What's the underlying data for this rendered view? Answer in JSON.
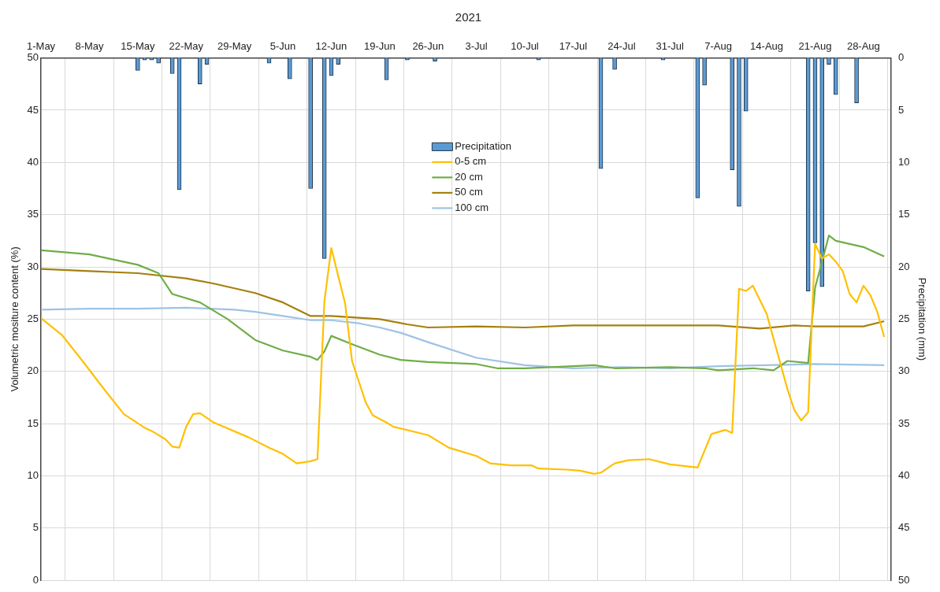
{
  "chart_data": {
    "type": "line",
    "title": "2021",
    "ylabel": "Volumetric mositure content (%)",
    "y2label": "Precipitation (mm)",
    "xlim": [
      "2021-05-01",
      "2021-09-01"
    ],
    "xticks": [
      {
        "value": "2021-05-01",
        "label": "1-May"
      },
      {
        "value": "2021-05-08",
        "label": "8-May"
      },
      {
        "value": "2021-05-15",
        "label": "15-May"
      },
      {
        "value": "2021-05-22",
        "label": "22-May"
      },
      {
        "value": "2021-05-29",
        "label": "29-May"
      },
      {
        "value": "2021-06-05",
        "label": "5-Jun"
      },
      {
        "value": "2021-06-12",
        "label": "12-Jun"
      },
      {
        "value": "2021-06-19",
        "label": "19-Jun"
      },
      {
        "value": "2021-06-26",
        "label": "26-Jun"
      },
      {
        "value": "2021-07-03",
        "label": "3-Jul"
      },
      {
        "value": "2021-07-10",
        "label": "10-Jul"
      },
      {
        "value": "2021-07-17",
        "label": "17-Jul"
      },
      {
        "value": "2021-07-24",
        "label": "24-Jul"
      },
      {
        "value": "2021-07-31",
        "label": "31-Jul"
      },
      {
        "value": "2021-08-07",
        "label": "7-Aug"
      },
      {
        "value": "2021-08-14",
        "label": "14-Aug"
      },
      {
        "value": "2021-08-21",
        "label": "21-Aug"
      },
      {
        "value": "2021-08-28",
        "label": "28-Aug"
      }
    ],
    "ylim": [
      0,
      50
    ],
    "yticks": [
      0,
      5,
      10,
      15,
      20,
      25,
      30,
      35,
      40,
      45,
      50
    ],
    "y2lim": [
      50,
      0
    ],
    "y2ticks": [
      0,
      5,
      10,
      15,
      20,
      25,
      30,
      35,
      40,
      45,
      50
    ],
    "grid": true,
    "legend": "top center",
    "series": [
      {
        "name": "Precipitation",
        "type": "bar",
        "axis": "y2",
        "color": "#5b9bd5",
        "x": [
          "2021-05-15",
          "2021-05-16",
          "2021-05-17",
          "2021-05-18",
          "2021-05-20",
          "2021-05-21",
          "2021-05-24",
          "2021-05-25",
          "2021-06-03",
          "2021-06-06",
          "2021-06-09",
          "2021-06-11",
          "2021-06-12",
          "2021-06-13",
          "2021-06-20",
          "2021-06-23",
          "2021-06-27",
          "2021-07-12",
          "2021-07-21",
          "2021-07-23",
          "2021-07-30",
          "2021-08-04",
          "2021-08-05",
          "2021-08-09",
          "2021-08-10",
          "2021-08-11",
          "2021-08-20",
          "2021-08-21",
          "2021-08-22",
          "2021-08-23",
          "2021-08-24",
          "2021-08-27"
        ],
        "values": [
          1.2,
          0.2,
          0.2,
          0.5,
          1.5,
          12.6,
          2.5,
          0.6,
          0.5,
          2.0,
          12.5,
          19.2,
          1.7,
          0.6,
          2.1,
          0.2,
          0.3,
          0.2,
          10.6,
          1.1,
          0.2,
          13.4,
          2.6,
          10.7,
          14.2,
          5.1,
          22.3,
          17.7,
          21.9,
          0.6,
          3.5,
          4.3
        ]
      },
      {
        "name": "0-5 cm",
        "color": "#ffc000",
        "x": [
          "2021-05-01",
          "2021-05-04",
          "2021-05-07",
          "2021-05-10",
          "2021-05-13",
          "2021-05-16",
          "2021-05-17",
          "2021-05-19",
          "2021-05-20",
          "2021-05-21",
          "2021-05-22",
          "2021-05-23",
          "2021-05-24",
          "2021-05-26",
          "2021-05-31",
          "2021-06-03",
          "2021-06-05",
          "2021-06-07",
          "2021-06-09",
          "2021-06-10",
          "2021-06-11",
          "2021-06-12",
          "2021-06-14",
          "2021-06-15",
          "2021-06-17",
          "2021-06-18",
          "2021-06-20",
          "2021-06-21",
          "2021-06-26",
          "2021-06-29",
          "2021-07-03",
          "2021-07-05",
          "2021-07-08",
          "2021-07-11",
          "2021-07-12",
          "2021-07-16",
          "2021-07-18",
          "2021-07-20",
          "2021-07-21",
          "2021-07-23",
          "2021-07-25",
          "2021-07-28",
          "2021-07-31",
          "2021-08-04",
          "2021-08-06",
          "2021-08-08",
          "2021-08-09",
          "2021-08-10",
          "2021-08-11",
          "2021-08-12",
          "2021-08-14",
          "2021-08-17",
          "2021-08-18",
          "2021-08-19",
          "2021-08-20",
          "2021-08-21",
          "2021-08-22",
          "2021-08-23",
          "2021-08-24",
          "2021-08-25",
          "2021-08-26",
          "2021-08-27",
          "2021-08-28",
          "2021-08-29",
          "2021-08-30",
          "2021-08-31"
        ],
        "values": [
          25.1,
          23.5,
          21.0,
          18.4,
          15.9,
          14.6,
          14.3,
          13.5,
          12.8,
          12.7,
          14.7,
          15.9,
          16.0,
          15.1,
          13.7,
          12.7,
          12.1,
          11.2,
          11.4,
          11.6,
          26.7,
          31.8,
          26.5,
          21.0,
          17.0,
          15.8,
          15.1,
          14.7,
          13.9,
          12.7,
          11.9,
          11.2,
          11.0,
          11.0,
          10.7,
          10.6,
          10.5,
          10.2,
          10.3,
          11.2,
          11.5,
          11.6,
          11.1,
          10.8,
          14.0,
          14.4,
          14.1,
          27.9,
          27.7,
          28.2,
          25.5,
          18.3,
          16.3,
          15.3,
          16.1,
          32.2,
          30.8,
          31.2,
          30.5,
          29.6,
          27.4,
          26.6,
          28.2,
          27.3,
          25.7,
          23.3
        ]
      },
      {
        "name": "20 cm",
        "color": "#70ad47",
        "x": [
          "2021-05-01",
          "2021-05-08",
          "2021-05-15",
          "2021-05-18",
          "2021-05-20",
          "2021-05-24",
          "2021-05-28",
          "2021-06-01",
          "2021-06-05",
          "2021-06-09",
          "2021-06-10",
          "2021-06-11",
          "2021-06-12",
          "2021-06-15",
          "2021-06-19",
          "2021-06-22",
          "2021-06-26",
          "2021-07-03",
          "2021-07-06",
          "2021-07-10",
          "2021-07-17",
          "2021-07-20",
          "2021-07-23",
          "2021-07-31",
          "2021-08-05",
          "2021-08-07",
          "2021-08-12",
          "2021-08-15",
          "2021-08-17",
          "2021-08-20",
          "2021-08-21",
          "2021-08-23",
          "2021-08-24",
          "2021-08-28",
          "2021-08-31"
        ],
        "values": [
          31.6,
          31.2,
          30.2,
          29.4,
          27.4,
          26.6,
          25.0,
          23.0,
          22.0,
          21.4,
          21.1,
          21.9,
          23.4,
          22.6,
          21.6,
          21.1,
          20.9,
          20.7,
          20.3,
          20.3,
          20.5,
          20.6,
          20.3,
          20.4,
          20.3,
          20.1,
          20.3,
          20.1,
          21.0,
          20.8,
          28.0,
          33.0,
          32.5,
          31.9,
          31.0
        ]
      },
      {
        "name": "50 cm",
        "color": "#a5800f",
        "x": [
          "2021-05-01",
          "2021-05-08",
          "2021-05-15",
          "2021-05-22",
          "2021-05-26",
          "2021-06-01",
          "2021-06-05",
          "2021-06-09",
          "2021-06-12",
          "2021-06-19",
          "2021-06-23",
          "2021-06-26",
          "2021-07-03",
          "2021-07-10",
          "2021-07-17",
          "2021-07-24",
          "2021-07-31",
          "2021-08-07",
          "2021-08-13",
          "2021-08-18",
          "2021-08-21",
          "2021-08-28",
          "2021-08-31"
        ],
        "values": [
          29.8,
          29.6,
          29.4,
          28.9,
          28.4,
          27.5,
          26.6,
          25.3,
          25.3,
          25.0,
          24.5,
          24.2,
          24.3,
          24.2,
          24.4,
          24.4,
          24.4,
          24.4,
          24.1,
          24.4,
          24.3,
          24.3,
          24.8
        ]
      },
      {
        "name": "100 cm",
        "color": "#9dc3e6",
        "x": [
          "2021-05-01",
          "2021-05-08",
          "2021-05-15",
          "2021-05-22",
          "2021-05-29",
          "2021-06-01",
          "2021-06-05",
          "2021-06-09",
          "2021-06-12",
          "2021-06-16",
          "2021-06-19",
          "2021-06-22",
          "2021-06-26",
          "2021-07-03",
          "2021-07-10",
          "2021-07-17",
          "2021-07-24",
          "2021-07-31",
          "2021-08-07",
          "2021-08-14",
          "2021-08-21",
          "2021-08-31"
        ],
        "values": [
          25.9,
          26.0,
          26.0,
          26.1,
          25.9,
          25.7,
          25.3,
          24.9,
          24.9,
          24.6,
          24.2,
          23.7,
          22.8,
          21.3,
          20.6,
          20.3,
          20.4,
          20.3,
          20.5,
          20.6,
          20.7,
          20.6
        ]
      }
    ]
  }
}
